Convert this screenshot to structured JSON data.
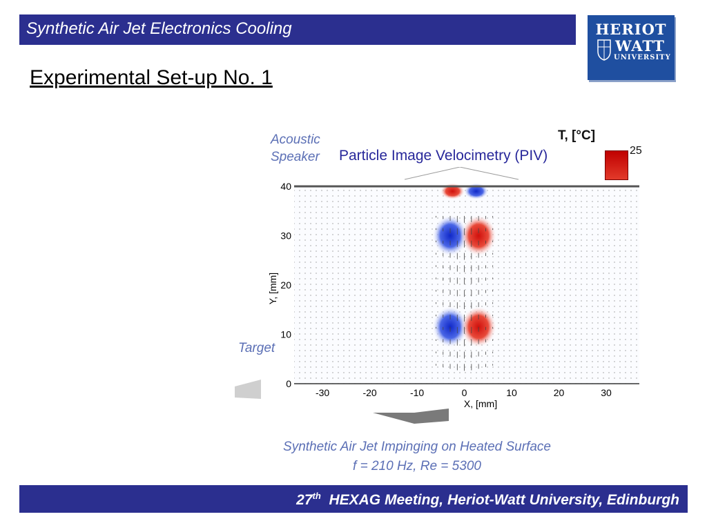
{
  "header": {
    "title": "Synthetic Air Jet Electronics Cooling"
  },
  "logo": {
    "line1": "HERIOT",
    "line2": "WATT",
    "line3": "UNIVERSITY"
  },
  "slide": {
    "title": "Experimental Set-up No. 1"
  },
  "background_figure": {
    "speaker_label_1": "Acoustic",
    "speaker_label_2": "Speaker",
    "target_label": "Target",
    "temperature_label": "T, [°C]",
    "colorbar_max": "25"
  },
  "piv_callout": "Particle Image Velocimetry (PIV)",
  "chart_data": {
    "type": "heatmap",
    "title": "",
    "xlabel": "X, [mm]",
    "ylabel": "Y, [mm]",
    "xlim": [
      -36,
      37
    ],
    "ylim": [
      0,
      40
    ],
    "xticks": [
      "-30",
      "-20",
      "-10",
      "0",
      "10",
      "20",
      "30"
    ],
    "yticks": [
      "0",
      "10",
      "20",
      "30",
      "40"
    ],
    "vortices": [
      {
        "x": -3,
        "y": 30,
        "sign": "negative"
      },
      {
        "x": 3,
        "y": 30,
        "sign": "positive"
      },
      {
        "x": -3,
        "y": 11.5,
        "sign": "negative"
      },
      {
        "x": 3,
        "y": 11.5,
        "sign": "positive"
      },
      {
        "x": -2.5,
        "y": 39,
        "sign": "positive"
      },
      {
        "x": 2.5,
        "y": 39,
        "sign": "negative"
      }
    ],
    "colors": {
      "positive": "#e0201c",
      "negative": "#1f3fd6",
      "arrows": "#444444"
    }
  },
  "caption": {
    "line1": "Synthetic Air Jet Impinging on Heated Surface",
    "line2": "f = 210 Hz, Re = 5300"
  },
  "footer": {
    "number": "27",
    "superscript": "th",
    "text": "HEXAG Meeting, Heriot-Watt University, Edinburgh"
  }
}
